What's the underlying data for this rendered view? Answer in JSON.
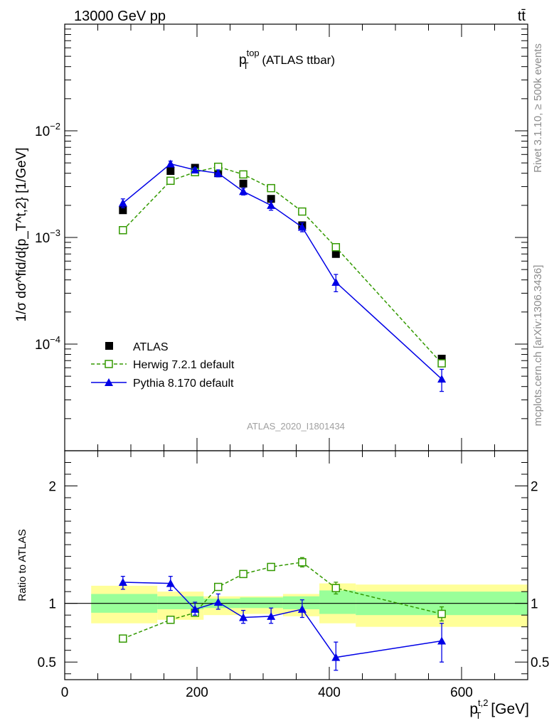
{
  "header": {
    "energy_label": "13000 GeV pp",
    "process_label": "tt̄"
  },
  "side_labels": {
    "rivet": "Rivet 3.1.10, ≥ 500k events",
    "source": "mcplots.cern.ch [arXiv:1306.3436]"
  },
  "colors": {
    "atlas": "#000000",
    "herwig": "#339900",
    "pythia": "#0000e6",
    "band_inner": "#99ff99",
    "band_outer": "#ffff99"
  },
  "chart_data": [
    {
      "type": "scatter",
      "panel": "main",
      "title": "p_T^top (ATLAS ttbar)",
      "title_main": "p",
      "title_sup": "top",
      "title_sub": "T",
      "title_rest": " (ATLAS ttbar)",
      "analysis_id": "ATLAS_2020_I1801434",
      "ylabel": "1/σ dσ^fid/d{p_T^t,2} [1/GeV]",
      "yscale": "log",
      "xlim": [
        0,
        700
      ],
      "ylim": [
        1e-05,
        0.1
      ],
      "xticks": [
        0,
        200,
        400,
        600
      ],
      "yticks": [
        {
          "value": 0.01,
          "base": "10",
          "exp": "−2"
        },
        {
          "value": 0.001,
          "base": "10",
          "exp": "−3"
        },
        {
          "value": 0.0001,
          "base": "10",
          "exp": "−4"
        }
      ],
      "legend_position": "lower-left",
      "series": [
        {
          "name": "ATLAS",
          "style": "marker-only",
          "marker": "filled-square",
          "x": [
            88,
            160,
            197,
            232,
            270,
            312,
            359,
            410,
            570
          ],
          "y": [
            0.0018,
            0.0042,
            0.0045,
            0.004,
            0.0032,
            0.0023,
            0.0013,
            0.0007,
            7.3e-05
          ]
        },
        {
          "name": "Herwig 7.2.1 default",
          "style": "dashed",
          "marker": "open-square",
          "x": [
            88,
            160,
            197,
            232,
            270,
            312,
            359,
            410,
            570
          ],
          "y": [
            0.00117,
            0.0034,
            0.0041,
            0.0046,
            0.0039,
            0.0029,
            0.00175,
            0.00081,
            6.6e-05
          ]
        },
        {
          "name": "Pythia 8.170 default",
          "style": "solid",
          "marker": "filled-triangle",
          "x": [
            88,
            160,
            197,
            232,
            270,
            312,
            359,
            410,
            570
          ],
          "y": [
            0.0021,
            0.0049,
            0.0043,
            0.004,
            0.0027,
            0.002,
            0.00125,
            0.00038,
            4.7e-05
          ],
          "err_lo": [
            0.0019,
            0.0046,
            0.0041,
            0.0037,
            0.0025,
            0.0018,
            0.00113,
            0.00031,
            3.6e-05
          ],
          "err_hi": [
            0.0023,
            0.0052,
            0.0045,
            0.0043,
            0.0029,
            0.0022,
            0.00137,
            0.00045,
            5.8e-05
          ]
        }
      ]
    },
    {
      "type": "scatter",
      "panel": "ratio",
      "ylabel": "Ratio to ATLAS",
      "xlabel": "p_T^t,2 [GeV]",
      "xlabel_main": "p",
      "xlabel_sub": "T",
      "xlabel_sup": "t,2",
      "xlabel_unit": " [GeV]",
      "xlim": [
        0,
        700
      ],
      "ylim": [
        0.35,
        2.3
      ],
      "xticks": [
        0,
        200,
        400,
        600
      ],
      "yticks": [
        0.5,
        1,
        2
      ],
      "reference_line": 1,
      "uncertainty_bands": [
        {
          "x0": 40,
          "x1": 140,
          "inner": [
            0.92,
            1.08
          ],
          "outer": [
            0.83,
            1.15
          ]
        },
        {
          "x0": 140,
          "x1": 210,
          "inner": [
            0.95,
            1.06
          ],
          "outer": [
            0.86,
            1.1
          ]
        },
        {
          "x0": 210,
          "x1": 265,
          "inner": [
            0.96,
            1.04
          ],
          "outer": [
            0.9,
            1.06
          ]
        },
        {
          "x0": 265,
          "x1": 330,
          "inner": [
            0.96,
            1.05
          ],
          "outer": [
            0.91,
            1.06
          ]
        },
        {
          "x0": 330,
          "x1": 385,
          "inner": [
            0.95,
            1.06
          ],
          "outer": [
            0.89,
            1.08
          ]
        },
        {
          "x0": 385,
          "x1": 440,
          "inner": [
            0.91,
            1.11
          ],
          "outer": [
            0.83,
            1.17
          ]
        },
        {
          "x0": 440,
          "x1": 700,
          "inner": [
            0.9,
            1.1
          ],
          "outer": [
            0.8,
            1.16
          ]
        }
      ],
      "series": [
        {
          "name": "Herwig 7.2.1 default",
          "style": "dashed",
          "marker": "open-square",
          "x": [
            88,
            160,
            197,
            232,
            270,
            312,
            359,
            410,
            570
          ],
          "y": [
            0.7,
            0.86,
            0.92,
            1.14,
            1.25,
            1.31,
            1.35,
            1.13,
            0.91
          ],
          "err_lo": [
            0.68,
            0.84,
            0.9,
            1.12,
            1.23,
            1.28,
            1.31,
            1.08,
            0.85
          ],
          "err_hi": [
            0.72,
            0.88,
            0.94,
            1.16,
            1.27,
            1.34,
            1.39,
            1.18,
            0.97
          ]
        },
        {
          "name": "Pythia 8.170 default",
          "style": "solid",
          "marker": "filled-triangle",
          "x": [
            88,
            160,
            197,
            232,
            270,
            312,
            359,
            410,
            570
          ],
          "y": [
            1.18,
            1.17,
            0.95,
            1.01,
            0.88,
            0.89,
            0.95,
            0.54,
            0.68
          ],
          "err_lo": [
            1.12,
            1.11,
            0.9,
            0.95,
            0.83,
            0.83,
            0.88,
            0.43,
            0.5
          ],
          "err_hi": [
            1.23,
            1.23,
            1.01,
            1.08,
            0.94,
            0.96,
            1.03,
            0.67,
            0.83
          ]
        }
      ]
    }
  ]
}
